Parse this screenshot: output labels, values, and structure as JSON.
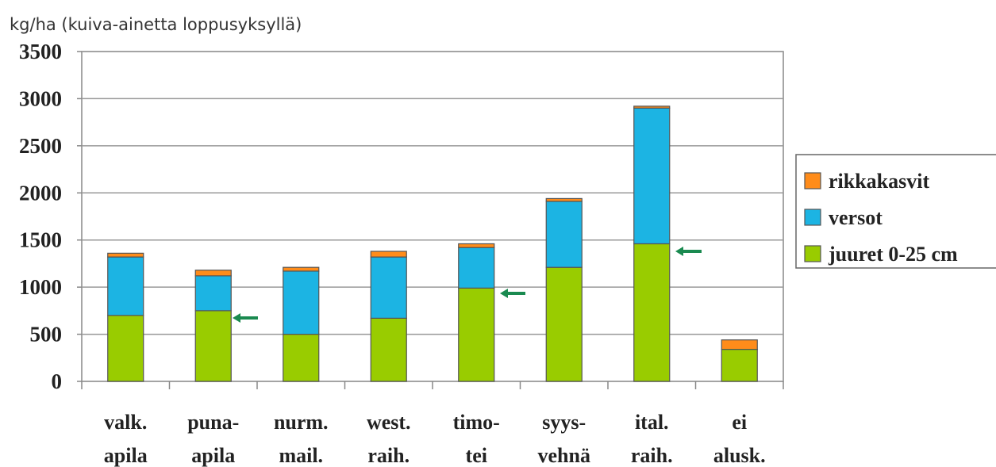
{
  "chart_data": {
    "type": "stacked_bar",
    "y_label": "kg/ha (kuiva-ainetta loppusyksyllä)",
    "categories": [
      [
        "valk.",
        "apila"
      ],
      [
        "puna-",
        "apila"
      ],
      [
        "nurm.",
        "mail."
      ],
      [
        "west.",
        "raih."
      ],
      [
        "timo-",
        "tei"
      ],
      [
        "syys-",
        "vehnä"
      ],
      [
        "ital.",
        "raih."
      ],
      [
        "ei",
        "alusk."
      ]
    ],
    "series": [
      {
        "name": "juuret 0-25 cm",
        "color": "#99cc00",
        "values": [
          700,
          750,
          500,
          670,
          990,
          1210,
          1460,
          340
        ]
      },
      {
        "name": "versot",
        "color": "#1cb4e3",
        "values": [
          620,
          370,
          670,
          650,
          430,
          700,
          1440,
          0
        ]
      },
      {
        "name": "rikkakasvit",
        "color": "#ff8c1a",
        "values": [
          40,
          60,
          40,
          60,
          40,
          30,
          20,
          100
        ]
      }
    ],
    "ylim": [
      0,
      3500
    ],
    "yticks": [
      0,
      500,
      1000,
      1500,
      2000,
      2500,
      3000,
      3500
    ],
    "grid": true,
    "legend": "right"
  }
}
